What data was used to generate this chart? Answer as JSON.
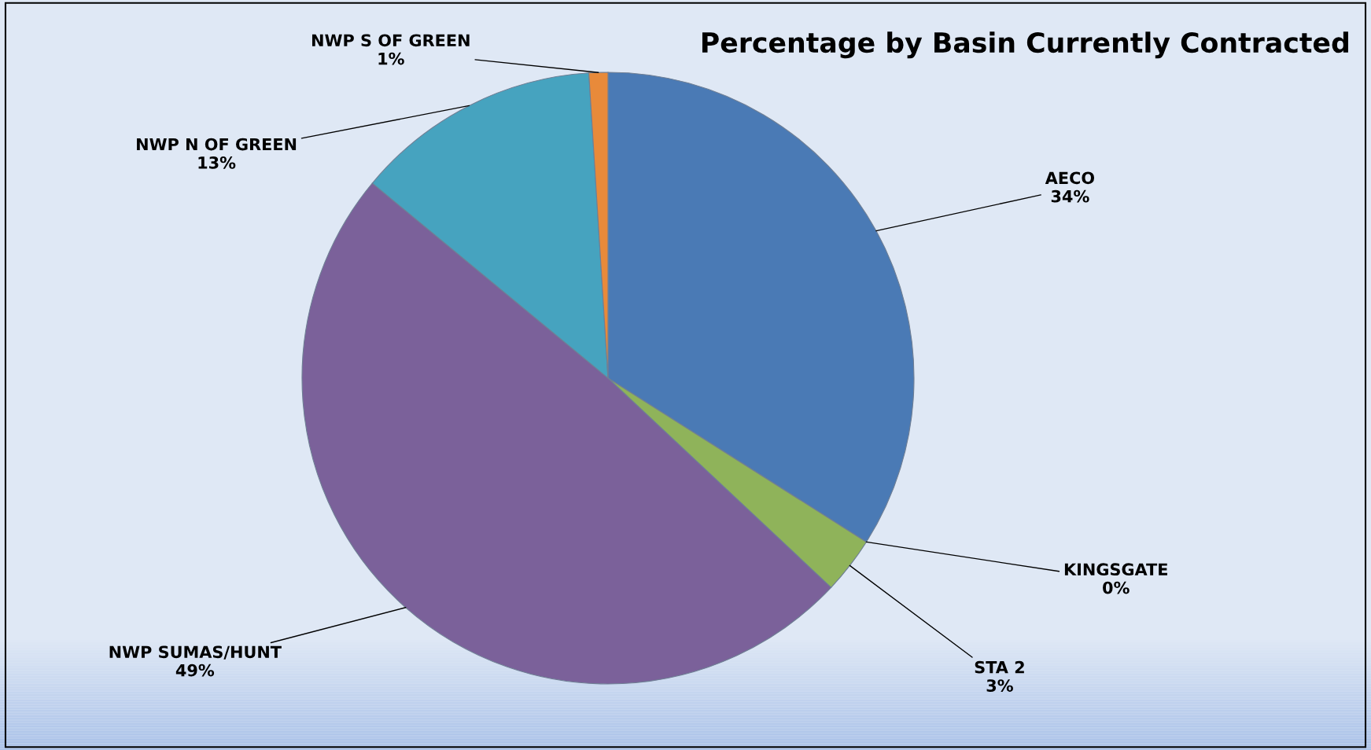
{
  "chart_data": {
    "type": "pie",
    "title": "Percentage by Basin Currently Contracted",
    "categories": [
      "AECO",
      "KINGSGATE",
      "STA 2",
      "NWP SUMAS/HUNT",
      "NWP N OF GREEN",
      "NWP S OF GREEN"
    ],
    "values": [
      34,
      0,
      3,
      49,
      13,
      1
    ],
    "colors": [
      "#4a7ab5",
      "#c0504d",
      "#8fb35a",
      "#7b619a",
      "#46a3bf",
      "#e88a3a"
    ],
    "value_labels": [
      "34%",
      "0%",
      "3%",
      "49%",
      "13%",
      "1%"
    ]
  }
}
